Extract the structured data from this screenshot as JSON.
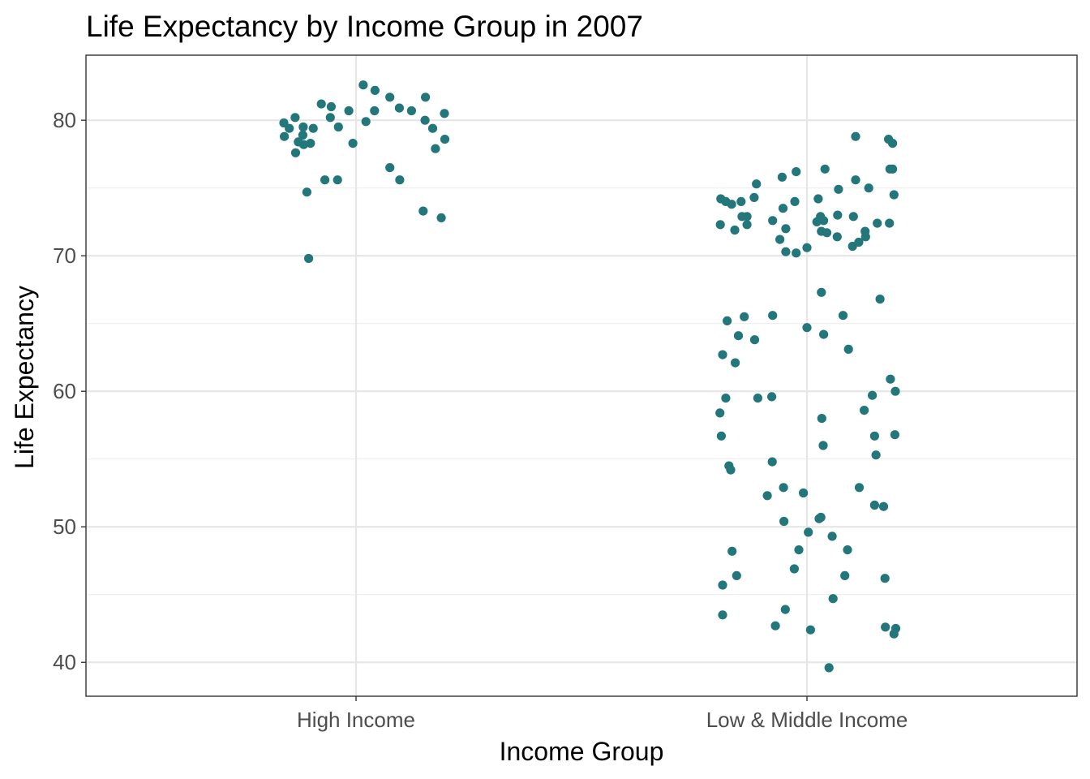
{
  "chart_data": {
    "type": "scatter",
    "title": "Life Expectancy by Income Group in 2007",
    "xlabel": "Income Group",
    "ylabel": "Life Expectancy",
    "categories": [
      "High Income",
      "Low & Middle Income"
    ],
    "ylim": [
      37.5,
      84.8
    ],
    "yticks": [
      40,
      50,
      60,
      70,
      80
    ],
    "grid": true,
    "point_color": "#23777b",
    "series": [
      {
        "category": "High Income",
        "points": [
          {
            "x": -0.16,
            "y": 79.8
          },
          {
            "x": -0.148,
            "y": 79.4
          },
          {
            "x": -0.135,
            "y": 80.2
          },
          {
            "x": -0.128,
            "y": 78.4
          },
          {
            "x": -0.117,
            "y": 79.5
          },
          {
            "x": -0.159,
            "y": 78.8
          },
          {
            "x": -0.118,
            "y": 78.9
          },
          {
            "x": -0.116,
            "y": 78.2
          },
          {
            "x": -0.101,
            "y": 78.3
          },
          {
            "x": -0.134,
            "y": 77.6
          },
          {
            "x": -0.095,
            "y": 79.4
          },
          {
            "x": -0.077,
            "y": 81.2
          },
          {
            "x": -0.055,
            "y": 81.0
          },
          {
            "x": -0.057,
            "y": 80.2
          },
          {
            "x": -0.039,
            "y": 79.5
          },
          {
            "x": -0.016,
            "y": 80.7
          },
          {
            "x": -0.007,
            "y": 78.3
          },
          {
            "x": 0.016,
            "y": 82.6
          },
          {
            "x": 0.042,
            "y": 82.2
          },
          {
            "x": 0.022,
            "y": 79.9
          },
          {
            "x": 0.041,
            "y": 80.7
          },
          {
            "x": 0.075,
            "y": 81.7
          },
          {
            "x": 0.096,
            "y": 80.9
          },
          {
            "x": 0.123,
            "y": 80.7
          },
          {
            "x": 0.154,
            "y": 81.7
          },
          {
            "x": 0.153,
            "y": 80.0
          },
          {
            "x": 0.196,
            "y": 80.5
          },
          {
            "x": 0.17,
            "y": 79.4
          },
          {
            "x": 0.197,
            "y": 78.6
          },
          {
            "x": 0.176,
            "y": 77.9
          },
          {
            "x": -0.069,
            "y": 75.6
          },
          {
            "x": -0.041,
            "y": 75.6
          },
          {
            "x": -0.109,
            "y": 74.7
          },
          {
            "x": 0.075,
            "y": 76.5
          },
          {
            "x": 0.097,
            "y": 75.6
          },
          {
            "x": 0.149,
            "y": 73.3
          },
          {
            "x": 0.189,
            "y": 72.8
          },
          {
            "x": -0.105,
            "y": 69.8
          }
        ]
      },
      {
        "category": "Low & Middle Income",
        "points": [
          {
            "x": -0.191,
            "y": 74.2
          },
          {
            "x": -0.192,
            "y": 72.3
          },
          {
            "x": -0.18,
            "y": 74.0
          },
          {
            "x": -0.167,
            "y": 73.8
          },
          {
            "x": -0.146,
            "y": 74.0
          },
          {
            "x": -0.144,
            "y": 72.9
          },
          {
            "x": -0.133,
            "y": 72.9
          },
          {
            "x": -0.133,
            "y": 72.3
          },
          {
            "x": -0.16,
            "y": 71.9
          },
          {
            "x": -0.117,
            "y": 74.3
          },
          {
            "x": -0.112,
            "y": 75.3
          },
          {
            "x": -0.076,
            "y": 72.6
          },
          {
            "x": -0.055,
            "y": 75.8
          },
          {
            "x": -0.053,
            "y": 73.5
          },
          {
            "x": -0.047,
            "y": 72.0
          },
          {
            "x": -0.06,
            "y": 71.2
          },
          {
            "x": -0.047,
            "y": 70.3
          },
          {
            "x": -0.027,
            "y": 74.0
          },
          {
            "x": -0.024,
            "y": 76.2
          },
          {
            "x": -0.024,
            "y": 70.2
          },
          {
            "x": 0.0,
            "y": 70.6
          },
          {
            "x": 0.025,
            "y": 74.2
          },
          {
            "x": 0.022,
            "y": 72.5
          },
          {
            "x": 0.03,
            "y": 72.9
          },
          {
            "x": 0.037,
            "y": 72.6
          },
          {
            "x": 0.032,
            "y": 71.8
          },
          {
            "x": 0.044,
            "y": 71.7
          },
          {
            "x": 0.04,
            "y": 76.4
          },
          {
            "x": 0.07,
            "y": 74.9
          },
          {
            "x": 0.068,
            "y": 73.0
          },
          {
            "x": 0.067,
            "y": 71.4
          },
          {
            "x": 0.103,
            "y": 72.9
          },
          {
            "x": 0.101,
            "y": 70.7
          },
          {
            "x": 0.115,
            "y": 71.0
          },
          {
            "x": 0.129,
            "y": 71.8
          },
          {
            "x": 0.13,
            "y": 71.4
          },
          {
            "x": 0.108,
            "y": 75.6
          },
          {
            "x": 0.137,
            "y": 75.0
          },
          {
            "x": 0.156,
            "y": 72.4
          },
          {
            "x": 0.183,
            "y": 72.4
          },
          {
            "x": 0.108,
            "y": 78.8
          },
          {
            "x": 0.181,
            "y": 78.6
          },
          {
            "x": 0.19,
            "y": 78.3
          },
          {
            "x": 0.184,
            "y": 76.4
          },
          {
            "x": 0.19,
            "y": 76.4
          },
          {
            "x": 0.193,
            "y": 74.5
          },
          {
            "x": 0.162,
            "y": 66.8
          },
          {
            "x": -0.177,
            "y": 65.2
          },
          {
            "x": -0.139,
            "y": 65.5
          },
          {
            "x": -0.152,
            "y": 64.1
          },
          {
            "x": -0.116,
            "y": 63.8
          },
          {
            "x": -0.187,
            "y": 62.7
          },
          {
            "x": -0.159,
            "y": 62.1
          },
          {
            "x": -0.076,
            "y": 65.6
          },
          {
            "x": 0.0,
            "y": 64.7
          },
          {
            "x": 0.032,
            "y": 67.3
          },
          {
            "x": 0.037,
            "y": 64.2
          },
          {
            "x": 0.08,
            "y": 65.6
          },
          {
            "x": 0.092,
            "y": 63.1
          },
          {
            "x": -0.18,
            "y": 59.5
          },
          {
            "x": -0.193,
            "y": 58.4
          },
          {
            "x": -0.109,
            "y": 59.5
          },
          {
            "x": -0.078,
            "y": 59.6
          },
          {
            "x": 0.033,
            "y": 58.0
          },
          {
            "x": 0.036,
            "y": 56.0
          },
          {
            "x": -0.19,
            "y": 56.7
          },
          {
            "x": -0.173,
            "y": 54.5
          },
          {
            "x": -0.169,
            "y": 54.2
          },
          {
            "x": -0.077,
            "y": 54.8
          },
          {
            "x": 0.127,
            "y": 58.6
          },
          {
            "x": 0.145,
            "y": 59.7
          },
          {
            "x": 0.15,
            "y": 56.7
          },
          {
            "x": 0.153,
            "y": 55.3
          },
          {
            "x": 0.185,
            "y": 60.9
          },
          {
            "x": 0.196,
            "y": 60.0
          },
          {
            "x": 0.195,
            "y": 56.8
          },
          {
            "x": -0.088,
            "y": 52.3
          },
          {
            "x": -0.052,
            "y": 52.9
          },
          {
            "x": -0.008,
            "y": 52.5
          },
          {
            "x": -0.051,
            "y": 50.4
          },
          {
            "x": 0.027,
            "y": 50.6
          },
          {
            "x": 0.031,
            "y": 50.7
          },
          {
            "x": 0.116,
            "y": 52.9
          },
          {
            "x": 0.15,
            "y": 51.6
          },
          {
            "x": 0.17,
            "y": 51.5
          },
          {
            "x": 0.003,
            "y": 49.6
          },
          {
            "x": 0.056,
            "y": 49.3
          },
          {
            "x": -0.166,
            "y": 48.2
          },
          {
            "x": -0.156,
            "y": 46.4
          },
          {
            "x": -0.187,
            "y": 45.7
          },
          {
            "x": -0.018,
            "y": 48.3
          },
          {
            "x": -0.028,
            "y": 46.9
          },
          {
            "x": 0.09,
            "y": 48.3
          },
          {
            "x": 0.084,
            "y": 46.4
          },
          {
            "x": 0.058,
            "y": 44.7
          },
          {
            "x": 0.173,
            "y": 46.2
          },
          {
            "x": -0.187,
            "y": 43.5
          },
          {
            "x": -0.07,
            "y": 42.7
          },
          {
            "x": -0.048,
            "y": 43.9
          },
          {
            "x": 0.008,
            "y": 42.4
          },
          {
            "x": 0.174,
            "y": 42.6
          },
          {
            "x": 0.197,
            "y": 42.5
          },
          {
            "x": 0.193,
            "y": 42.1
          },
          {
            "x": 0.049,
            "y": 39.6
          }
        ]
      }
    ]
  }
}
